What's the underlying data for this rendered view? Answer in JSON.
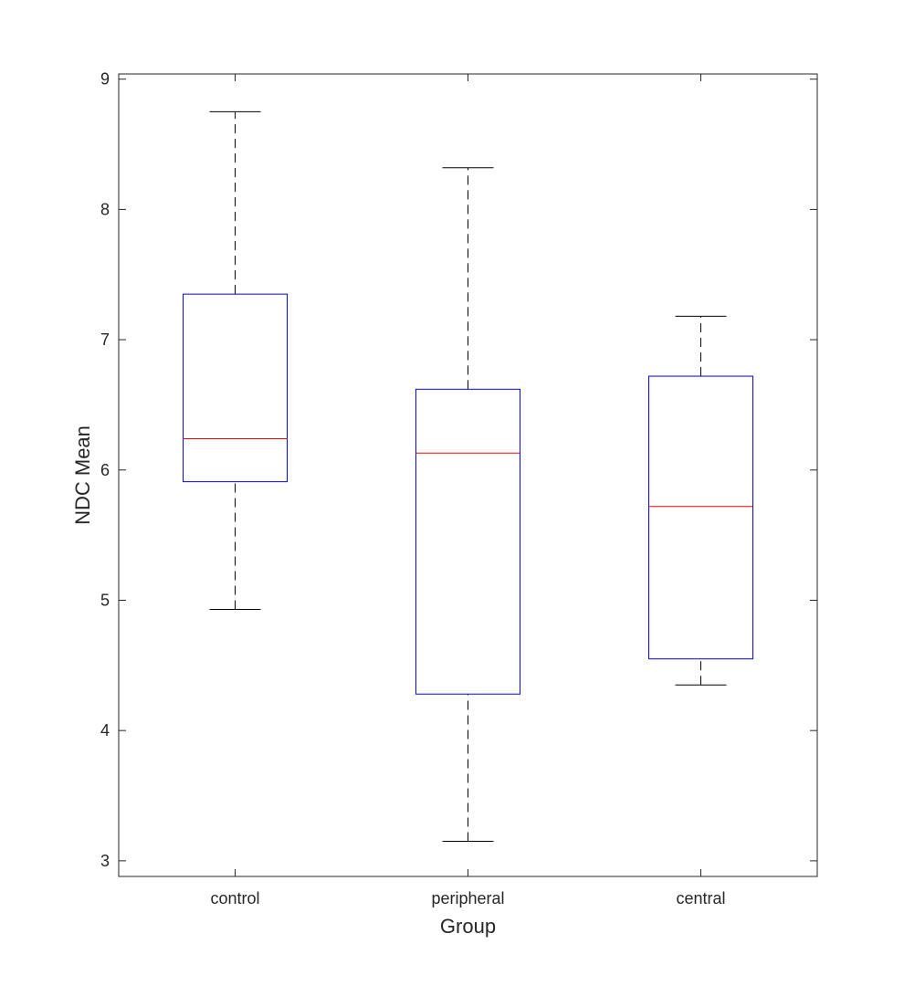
{
  "chart_data": {
    "type": "boxplot",
    "title": "",
    "xlabel": "Group",
    "ylabel": "NDC Mean",
    "ylim": [
      2.88,
      9.04
    ],
    "yticks": [
      3,
      4,
      5,
      6,
      7,
      8,
      9
    ],
    "categories": [
      "control",
      "peripheral",
      "central"
    ],
    "boxes": [
      {
        "category": "control",
        "whisker_low": 4.93,
        "q1": 5.91,
        "median": 6.24,
        "q3": 7.35,
        "whisker_high": 8.75
      },
      {
        "category": "peripheral",
        "whisker_low": 3.15,
        "q1": 4.28,
        "median": 6.13,
        "q3": 6.62,
        "whisker_high": 8.32
      },
      {
        "category": "central",
        "whisker_low": 4.35,
        "q1": 4.55,
        "median": 5.72,
        "q3": 6.72,
        "whisker_high": 7.18
      }
    ],
    "grid": false,
    "colors": {
      "box": "#0000ff",
      "median": "#ff0000",
      "whisker": "#000000",
      "axes": "#262626"
    }
  }
}
